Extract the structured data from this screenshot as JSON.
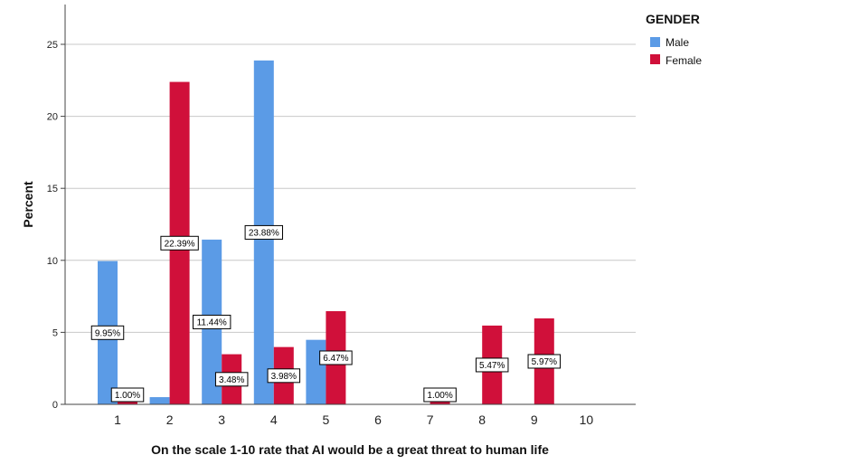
{
  "chart_data": {
    "type": "bar",
    "title": "",
    "xlabel": "On the scale 1-10 rate that AI would be a great threat to human life",
    "ylabel": "Percent",
    "categories": [
      "1",
      "2",
      "3",
      "4",
      "5",
      "6",
      "7",
      "8",
      "9",
      "10"
    ],
    "ylim": [
      0,
      25
    ],
    "yticks": [
      0,
      5,
      10,
      15,
      20,
      25
    ],
    "grid": true,
    "legend": {
      "title": "GENDER",
      "placement": "top-right"
    },
    "series": [
      {
        "name": "Male",
        "color": "#5b9be6",
        "values": [
          9.95,
          0.5,
          11.44,
          23.88,
          4.48,
          null,
          null,
          null,
          null,
          null
        ],
        "labels": [
          "9.95%",
          "",
          "11.44%",
          "23.88%",
          "",
          "",
          "",
          "",
          "",
          ""
        ]
      },
      {
        "name": "Female",
        "color": "#d0103a",
        "values": [
          1.0,
          22.39,
          3.48,
          3.98,
          6.47,
          null,
          1.0,
          5.47,
          5.97,
          null
        ],
        "labels": [
          "1.00%",
          "22.39%",
          "3.48%",
          "3.98%",
          "6.47%",
          "",
          "1.00%",
          "5.47%",
          "5.97%",
          ""
        ]
      }
    ]
  }
}
